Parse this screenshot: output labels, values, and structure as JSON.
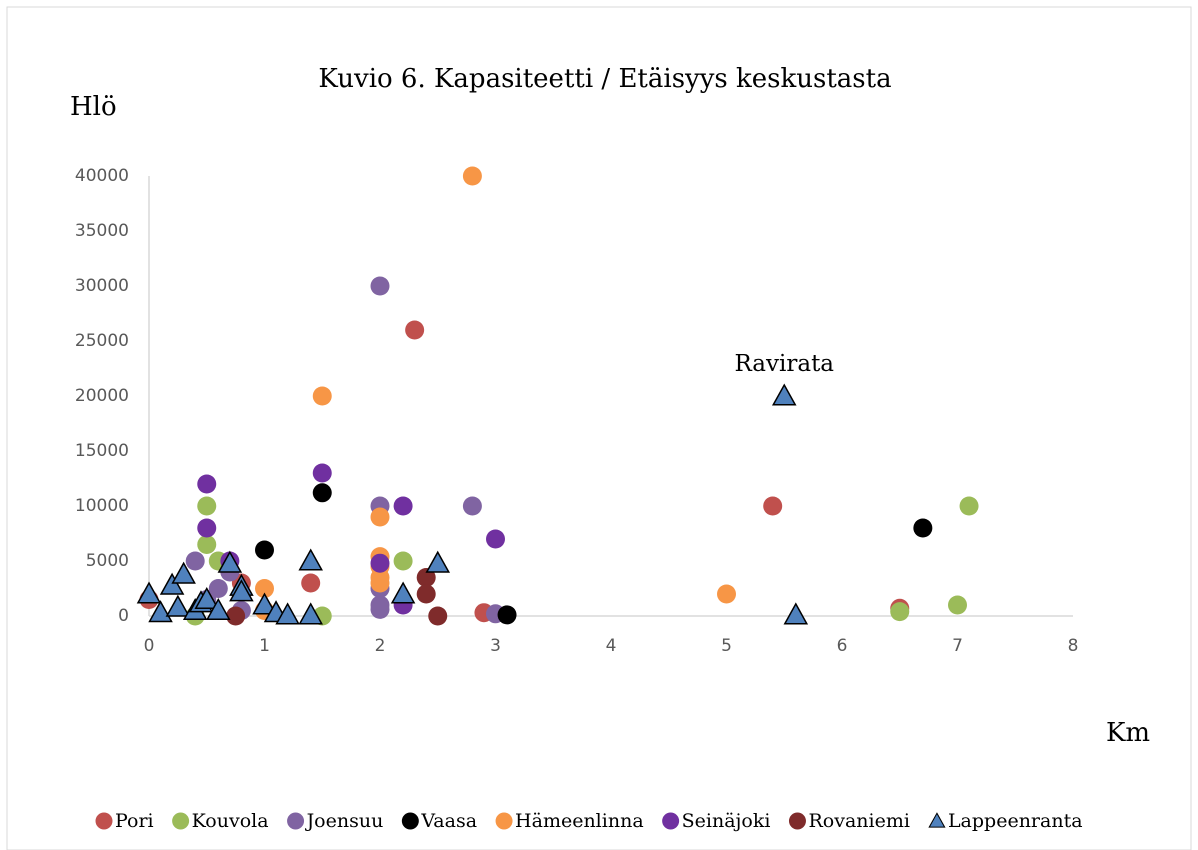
{
  "chart_data": {
    "type": "scatter",
    "title": "Kuvio 6. Kapasiteetti / Etäisyys keskustasta",
    "y_label": "Hlö",
    "x_label": "Km",
    "xlim": [
      0,
      8
    ],
    "xticks": [
      0,
      1,
      2,
      3,
      4,
      5,
      6,
      7,
      8
    ],
    "ylim": [
      0,
      40000
    ],
    "yticks": [
      0,
      5000,
      10000,
      15000,
      20000,
      25000,
      30000,
      35000,
      40000
    ],
    "grid": false,
    "legend": "bottom",
    "annotations": [
      {
        "text": "Ravirata",
        "x": 5.5,
        "y": 22800
      }
    ],
    "series": [
      {
        "name": "Pori",
        "color": "#c0504d",
        "marker": "circle",
        "x": [
          0,
          0.8,
          1.4,
          2.3,
          2.9,
          5.4,
          6.5
        ],
        "values": [
          1500,
          3000,
          3000,
          26000,
          300,
          10000,
          700
        ]
      },
      {
        "name": "Kouvola",
        "color": "#9bbb59",
        "marker": "circle",
        "x": [
          0.4,
          0.5,
          0.5,
          0.6,
          1.5,
          2.2,
          6.5,
          7,
          7.1
        ],
        "values": [
          0,
          10000,
          6500,
          5000,
          0,
          5000,
          400,
          1000,
          10000
        ]
      },
      {
        "name": "Joensuu",
        "color": "#8064a2",
        "marker": "circle",
        "x": [
          0.4,
          0.6,
          0.7,
          0.5,
          0.8,
          2,
          2,
          2,
          2,
          2,
          2.8,
          3
        ],
        "values": [
          5000,
          2500,
          4000,
          1500,
          500,
          30000,
          10000,
          2500,
          1000,
          600,
          10000,
          200
        ]
      },
      {
        "name": "Vaasa",
        "color": "#000000",
        "marker": "circle",
        "x": [
          1,
          1.5,
          3.1,
          6.7
        ],
        "values": [
          6000,
          11200,
          100,
          8000
        ]
      },
      {
        "name": "Hämeenlinna",
        "color": "#f79646",
        "marker": "circle",
        "x": [
          1,
          1,
          1.5,
          2,
          2,
          2,
          2,
          2,
          2.8,
          5
        ],
        "values": [
          2500,
          500,
          20000,
          9000,
          5400,
          4500,
          3500,
          3000,
          40000,
          2000
        ]
      },
      {
        "name": "Seinäjoki",
        "color": "#7030a0",
        "marker": "circle",
        "x": [
          0.5,
          0.5,
          0.7,
          1.5,
          2,
          2.2,
          2.2,
          3
        ],
        "values": [
          12000,
          8000,
          5000,
          13000,
          4800,
          10000,
          1000,
          7000
        ]
      },
      {
        "name": "Rovaniemi",
        "color": "#7f2b2b",
        "marker": "circle",
        "x": [
          0.75,
          2.4,
          2.4,
          2.5
        ],
        "values": [
          0,
          3500,
          2000,
          0
        ]
      },
      {
        "name": "Lappeenranta",
        "color": "#4f81bd",
        "marker": "triangle",
        "x": [
          0,
          0.1,
          0.2,
          0.25,
          0.3,
          0.4,
          0.45,
          0.5,
          0.6,
          0.7,
          0.8,
          0.8,
          1,
          1.1,
          1.2,
          1.4,
          1.4,
          2.2,
          2.5,
          5.5,
          5.6
        ],
        "values": [
          2000,
          300,
          2800,
          800,
          3800,
          500,
          1200,
          1500,
          500,
          4800,
          2700,
          2200,
          1000,
          300,
          100,
          5000,
          100,
          2000,
          4800,
          20000,
          100
        ]
      }
    ]
  }
}
